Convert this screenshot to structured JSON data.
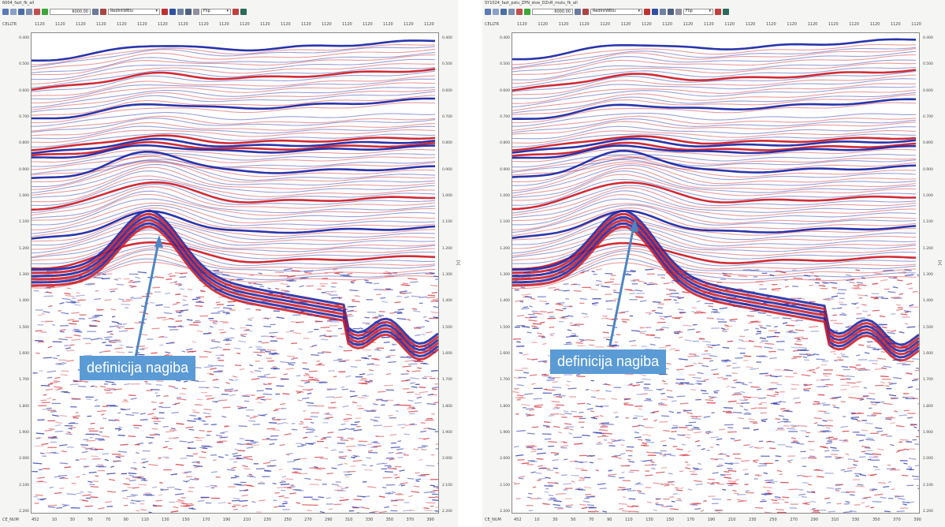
{
  "panels": [
    {
      "title": "6004_fazt_fk_all",
      "toolbar": {
        "zoom_value": "6000.00",
        "colormap": "RedIntWBlu",
        "gain": "Flip"
      },
      "header_label": "CELLTR",
      "header_ticks": [
        "1120",
        "1120",
        "1120",
        "1120",
        "1120",
        "1120",
        "1120",
        "1120",
        "1120",
        "1120",
        "1120",
        "1120",
        "1120",
        "1120",
        "1120",
        "1120",
        "1120",
        "1120",
        "1120",
        "1120"
      ],
      "time_labels": [
        "0.400",
        "0.500",
        "0.600",
        "0.700",
        "0.800",
        "0.900",
        "1.000",
        "1.100",
        "1.200",
        "1.300",
        "1.400",
        "1.500",
        "1.600",
        "1.700",
        "1.800",
        "1.900",
        "2.000",
        "2.100",
        "2.200"
      ],
      "unit_label": "[s]",
      "footer_label": "CE_NUM",
      "footer_ticks": [
        "452",
        "10",
        "30",
        "50",
        "70",
        "90",
        "110",
        "130",
        "150",
        "170",
        "190",
        "210",
        "230",
        "250",
        "270",
        "290",
        "310",
        "330",
        "350",
        "370",
        "390"
      ],
      "callout": "definicija nagiba"
    },
    {
      "title": "SY1024_fazt_pstu_ZPN_stoe_DZnR_mutu_fk_all",
      "toolbar": {
        "zoom_value": "6000.00",
        "colormap": "RedIntWBlu",
        "gain": "Flip"
      },
      "header_label": "CELLTR",
      "header_ticks": [
        "1120",
        "1120",
        "1120",
        "1120",
        "1120",
        "1120",
        "1120",
        "1120",
        "1120",
        "1120",
        "1120",
        "1120",
        "1120",
        "1120",
        "1120",
        "1120",
        "1120",
        "1120",
        "1120",
        "1120"
      ],
      "time_labels": [
        "0.400",
        "0.500",
        "0.600",
        "0.700",
        "0.800",
        "0.900",
        "1.000",
        "1.100",
        "1.200",
        "1.300",
        "1.400",
        "1.500",
        "1.600",
        "1.700",
        "1.800",
        "1.900",
        "2.000",
        "2.100",
        "2.200"
      ],
      "unit_label": "[s]",
      "footer_label": "CE_NUM",
      "footer_ticks": [
        "452",
        "10",
        "30",
        "50",
        "70",
        "90",
        "110",
        "130",
        "150",
        "170",
        "190",
        "210",
        "230",
        "250",
        "270",
        "290",
        "310",
        "330",
        "350",
        "370",
        "390"
      ],
      "callout": "definicija nagiba"
    }
  ],
  "colors": {
    "positive": "#d0202a",
    "negative": "#1f2aa8",
    "callout_bg": "#5b9bd5",
    "arrow": "#4a86c5"
  }
}
